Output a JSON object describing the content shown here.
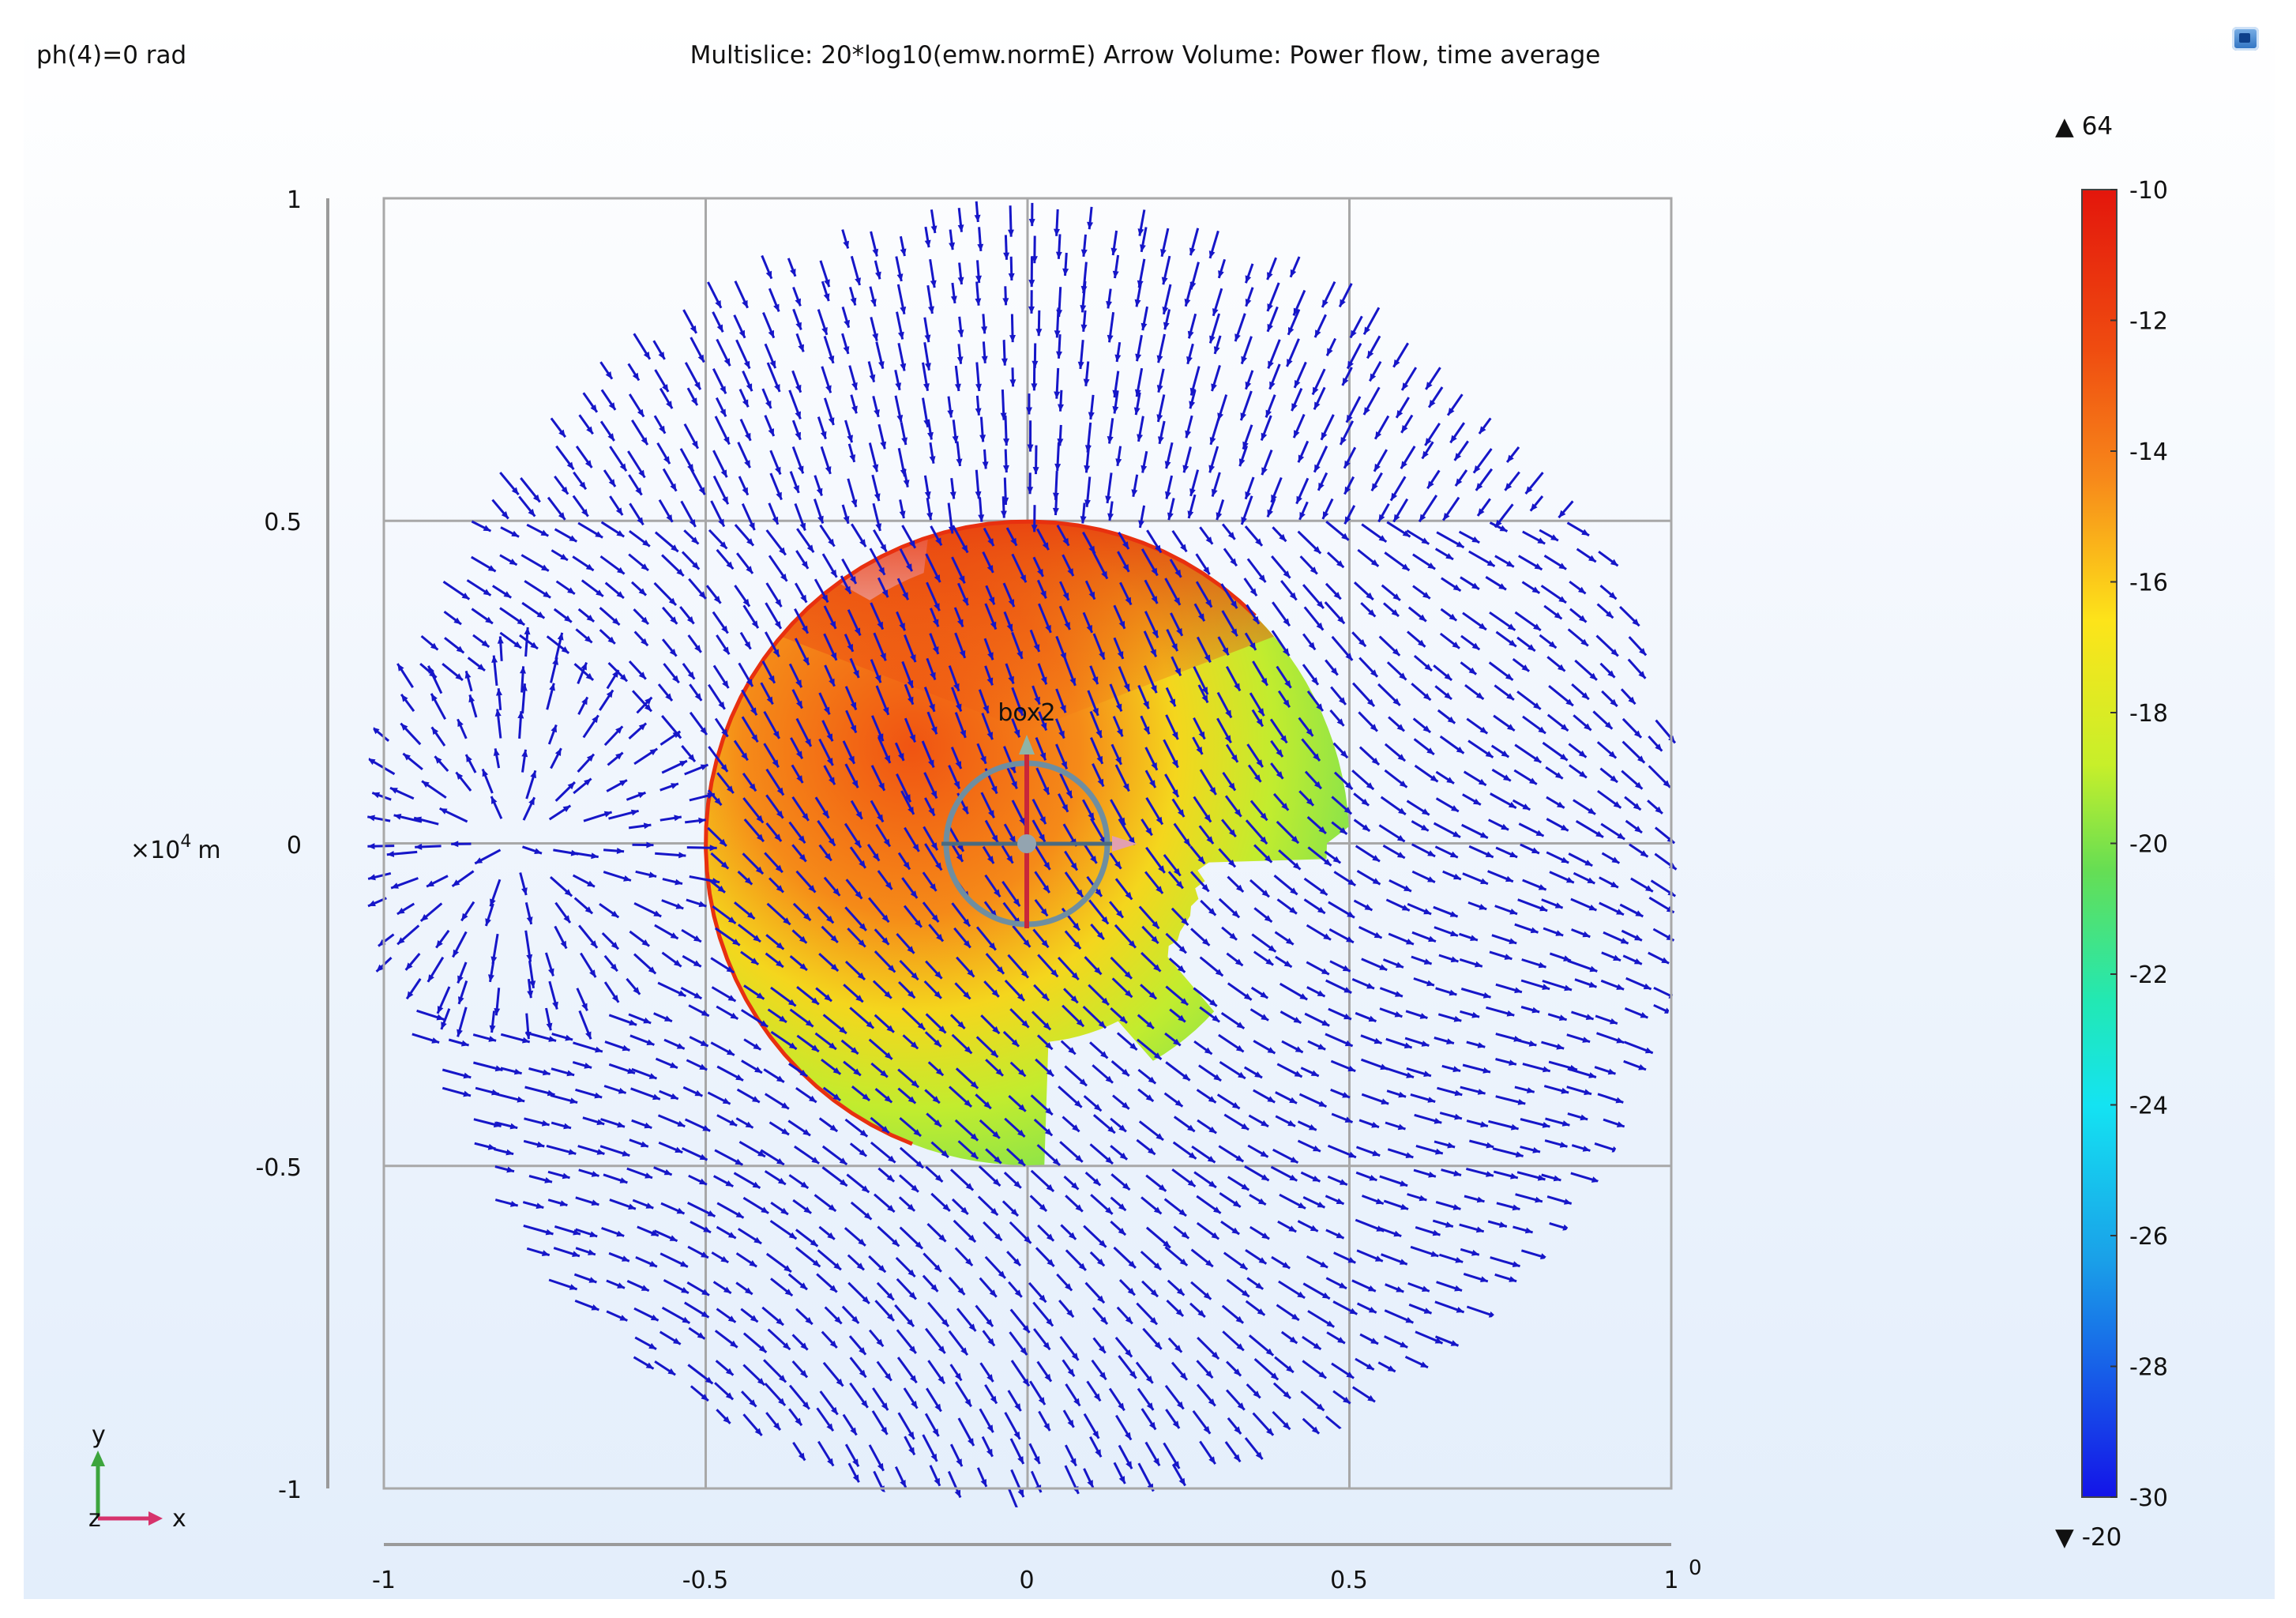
{
  "header": {
    "parameter_label": "ph(4)=0 rad",
    "plot_title": "Multislice: 20*log10(emw.normE)  Arrow Volume: Power flow, time average"
  },
  "chart_data": {
    "type": "heatmap",
    "title": "Multislice: 20*log10(emw.normE)  Arrow Volume: Power flow, time average",
    "xlim": [
      -1,
      1
    ],
    "ylim": [
      -1,
      1
    ],
    "x_ticks": [
      "-1",
      "-0.5",
      "0",
      "0.5",
      "1"
    ],
    "y_ticks": [
      "1",
      "0.5",
      "0",
      "-0.5",
      "-1"
    ],
    "x_scale_exponent": "0",
    "y_scale_label": "×10",
    "y_scale_power": "4",
    "y_scale_unit": "m",
    "grid": true,
    "object_label": "box2",
    "colorbar": {
      "range_max": "▲ 64",
      "range_min": "▼ -20",
      "ticks": [
        "-10",
        "-12",
        "-14",
        "-16",
        "-18",
        "-20",
        "-22",
        "-24",
        "-26",
        "-28",
        "-30"
      ],
      "min": -30,
      "max": -10
    },
    "triad": {
      "y": "y",
      "x": "x",
      "z": "z"
    },
    "colors": {
      "arrows": "#1616c8",
      "grid": "#a8a8a8",
      "axis_y": "#3da53d",
      "axis_x": "#d6336c"
    }
  }
}
